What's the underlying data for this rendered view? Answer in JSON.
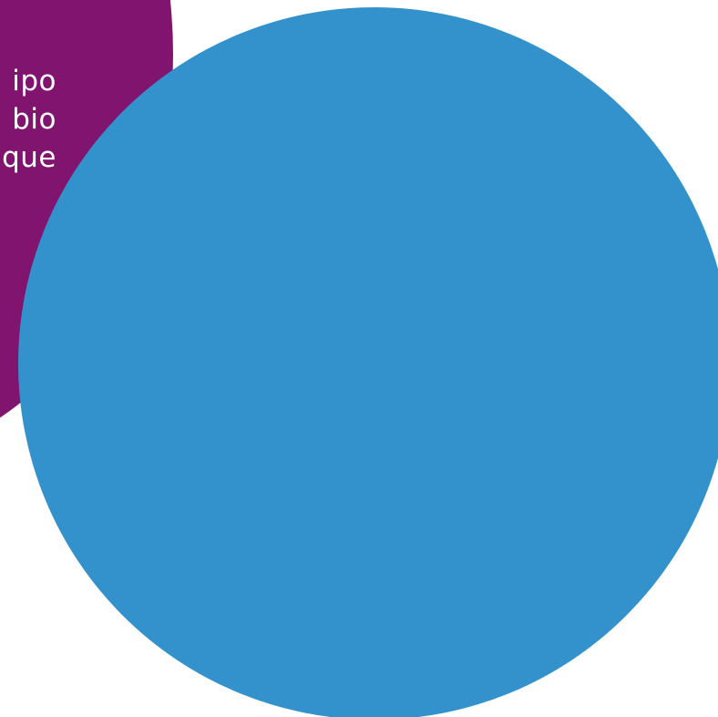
{
  "colors": {
    "background": "#ffffff",
    "purple_shape": "#81146F",
    "blue_circle": "#3392CB",
    "text": "#ffffff"
  },
  "text_block": {
    "lines": [
      "ipo",
      "bio",
      "que"
    ]
  }
}
